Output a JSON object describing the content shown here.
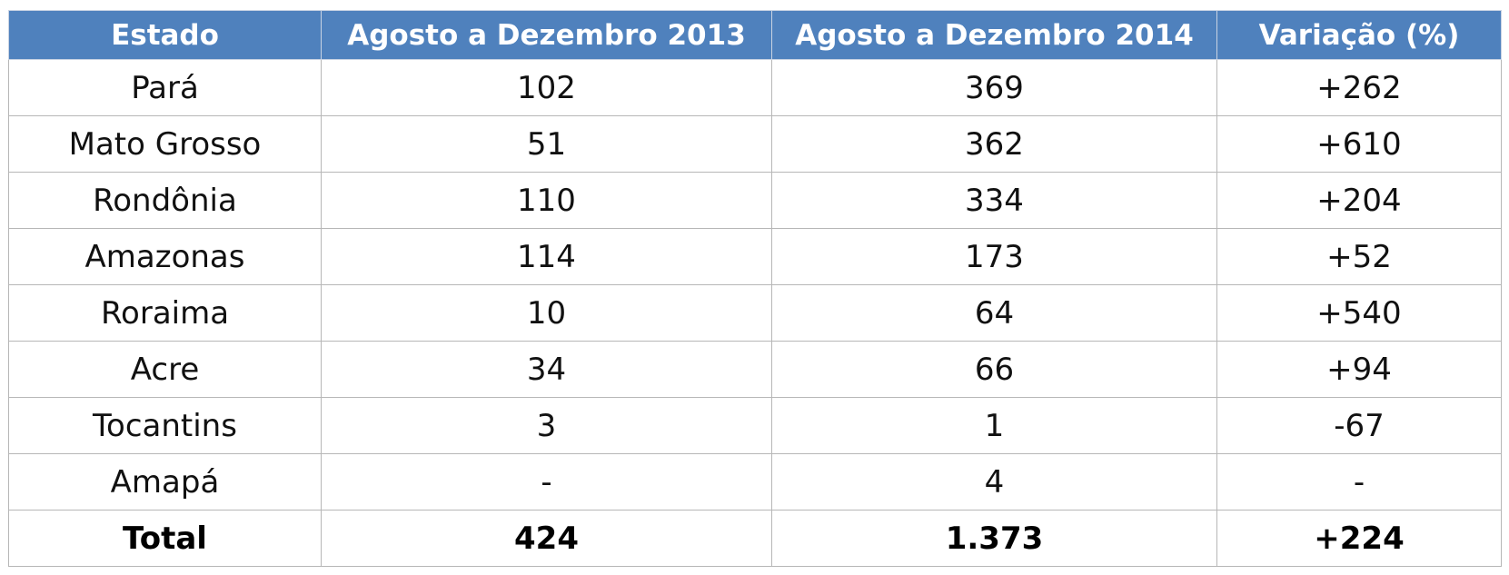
{
  "table": {
    "header": [
      "Estado",
      "Agosto a Dezembro 2013",
      "Agosto a Dezembro 2014",
      "Variação (%)"
    ],
    "rows": [
      [
        "Pará",
        "102",
        "369",
        "+262"
      ],
      [
        "Mato Grosso",
        "51",
        "362",
        "+610"
      ],
      [
        "Rondônia",
        "110",
        "334",
        "+204"
      ],
      [
        "Amazonas",
        "114",
        "173",
        "+52"
      ],
      [
        "Roraima",
        "10",
        "64",
        "+540"
      ],
      [
        "Acre",
        "34",
        "66",
        "+94"
      ],
      [
        "Tocantins",
        "3",
        "1",
        "-67"
      ],
      [
        "Amapá",
        "-",
        "4",
        "-"
      ]
    ],
    "total": [
      "Total",
      "424",
      "1.373",
      "+224"
    ]
  }
}
